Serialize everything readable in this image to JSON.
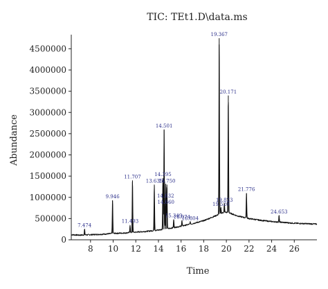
{
  "chart_data": {
    "type": "line",
    "title": "TIC: TEt1.D\\data.ms",
    "xlabel": "Time",
    "ylabel": "Abundance",
    "xlim": [
      6.3,
      28.0
    ],
    "ylim": [
      0,
      4800000
    ],
    "x_ticks": [
      "8",
      "10",
      "12",
      "14",
      "16",
      "18",
      "20",
      "22",
      "24",
      "26"
    ],
    "x_tick_values": [
      8,
      10,
      12,
      14,
      16,
      18,
      20,
      22,
      24,
      26
    ],
    "y_ticks": [
      "0",
      "500000",
      "1000000",
      "1500000",
      "2000000",
      "2500000",
      "3000000",
      "3500000",
      "4000000",
      "4500000"
    ],
    "y_tick_values": [
      0,
      500000,
      1000000,
      1500000,
      2000000,
      2500000,
      3000000,
      3500000,
      4000000,
      4500000
    ],
    "grid": false,
    "baseline": [
      [
        6.3,
        120000
      ],
      [
        7.0,
        110000
      ],
      [
        8.0,
        120000
      ],
      [
        9.0,
        130000
      ],
      [
        10.0,
        150000
      ],
      [
        11.0,
        160000
      ],
      [
        12.0,
        180000
      ],
      [
        13.0,
        200000
      ],
      [
        14.0,
        230000
      ],
      [
        15.0,
        270000
      ],
      [
        16.0,
        320000
      ],
      [
        17.0,
        380000
      ],
      [
        18.0,
        450000
      ],
      [
        19.0,
        560000
      ],
      [
        19.8,
        650000
      ],
      [
        20.2,
        640000
      ],
      [
        21.0,
        560000
      ],
      [
        22.0,
        500000
      ],
      [
        23.0,
        460000
      ],
      [
        24.0,
        430000
      ],
      [
        25.0,
        410000
      ],
      [
        26.0,
        390000
      ],
      [
        27.0,
        380000
      ],
      [
        28.0,
        370000
      ]
    ],
    "peaks": [
      {
        "rt": 7.474,
        "height": 250000,
        "label": "7.474"
      },
      {
        "rt": 9.946,
        "height": 930000,
        "label": "9.946"
      },
      {
        "rt": 11.493,
        "height": 350000,
        "label": "11.493"
      },
      {
        "rt": 11.707,
        "height": 1400000,
        "label": "11.707"
      },
      {
        "rt": 13.635,
        "height": 1300000,
        "label": "13.635"
      },
      {
        "rt": 14.395,
        "height": 1450000,
        "label": "14.395"
      },
      {
        "rt": 14.501,
        "height": 2600000,
        "label": "14.501"
      },
      {
        "rt": 14.632,
        "height": 950000,
        "label": "14.632"
      },
      {
        "rt": 14.66,
        "height": 800000,
        "label": "14.660"
      },
      {
        "rt": 14.75,
        "height": 1300000,
        "label": "14.750"
      },
      {
        "rt": 15.349,
        "height": 480000,
        "label": "15.349"
      },
      {
        "rt": 16.074,
        "height": 450000,
        "label": "16.074"
      },
      {
        "rt": 16.804,
        "height": 420000,
        "label": "16.804"
      },
      {
        "rt": 19.367,
        "height": 4750000,
        "label": "19.367"
      },
      {
        "rt": 19.52,
        "height": 750000,
        "label": "19.520"
      },
      {
        "rt": 19.823,
        "height": 850000,
        "label": "19.823"
      },
      {
        "rt": 20.171,
        "height": 3400000,
        "label": "20.171"
      },
      {
        "rt": 21.776,
        "height": 1100000,
        "label": "21.776"
      },
      {
        "rt": 24.653,
        "height": 570000,
        "label": "24.653"
      }
    ]
  }
}
